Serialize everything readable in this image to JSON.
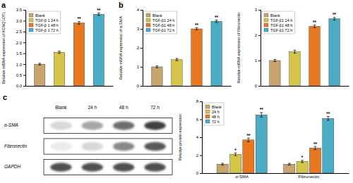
{
  "chart_data": [
    {
      "type": "bar",
      "title": "a",
      "ylabel": "Relative mRNA expression of KCNQ1OT1",
      "categories": [
        "Blank",
        "TGF-β 1 24 h",
        "TGF-β 1 48 h",
        "TGF-β 1 72 h"
      ],
      "values": [
        1.0,
        1.55,
        2.9,
        3.3
      ],
      "errors": [
        0.04,
        0.05,
        0.06,
        0.06
      ],
      "colors": [
        "#C8A46E",
        "#D4C44A",
        "#E87722",
        "#4BACC6"
      ],
      "ylim": [
        0,
        3.5
      ],
      "yticks": [
        {
          "value": 0.0,
          "label": "0.0"
        },
        0.5,
        {
          "value": 1.0,
          "label": "1.0"
        },
        1.5,
        {
          "value": 2.0,
          "label": "2.0"
        },
        2.5,
        {
          "value": 3.0,
          "label": "3.0"
        },
        3.5
      ],
      "tick_labels": "y",
      "legend": "upper left",
      "annotations": [
        {
          "text": "**",
          "category": "TGF-β 1 48 h"
        },
        {
          "text": "**",
          "category": "TGF-β 1 72 h"
        }
      ]
    },
    {
      "type": "bar",
      "title": "b",
      "ylabel": "Relative mRNA expression of α-SMA",
      "categories": [
        "Blank",
        "TGF-β1 24 h",
        "TGF-β1 48 h",
        "TGF-β1 72 h"
      ],
      "values": [
        1.0,
        1.38,
        3.0,
        3.4
      ],
      "errors": [
        0.05,
        0.06,
        0.06,
        0.06
      ],
      "colors": [
        "#C8A46E",
        "#D4C44A",
        "#E87722",
        "#4BACC6"
      ],
      "ylim": [
        0,
        4.0
      ],
      "yticks": [
        0,
        1,
        2,
        3,
        4
      ],
      "tick_labels": "y",
      "legend": "upper left",
      "annotations": [
        {
          "text": "**",
          "category": "TGF-β1 48 h"
        },
        {
          "text": "**",
          "category": "TGF-β1 72 h"
        }
      ]
    },
    {
      "type": "bar",
      "ylabel": "Relative mRNA expression of Fibronectin",
      "categories": [
        "Blank",
        "TGF-β1 24 h",
        "TGF-β1 48 h",
        "TGF-β1 72 h"
      ],
      "values": [
        1.0,
        1.35,
        2.35,
        2.65
      ],
      "errors": [
        0.04,
        0.06,
        0.05,
        0.05
      ],
      "colors": [
        "#C8A46E",
        "#D4C44A",
        "#E87722",
        "#4BACC6"
      ],
      "ylim": [
        0,
        3.0
      ],
      "yticks": [
        0,
        1,
        2,
        3
      ],
      "tick_labels": "y",
      "legend": "upper left",
      "annotations": [
        {
          "text": "**",
          "category": "TGF-β1 48 h"
        },
        {
          "text": "**",
          "category": "TGF-β1 72 h"
        }
      ]
    },
    {
      "type": "blot",
      "title": "c",
      "categories": [
        "Blank",
        "24 h",
        "48 h",
        "72 h"
      ],
      "series": [
        {
          "name": "α-SMA",
          "values": [
            0.25,
            0.45,
            0.65,
            0.8
          ]
        },
        {
          "name": "Fibronectin",
          "values": [
            0.15,
            0.25,
            0.55,
            0.72
          ]
        },
        {
          "name": "GAPDH",
          "values": [
            0.75,
            0.75,
            0.75,
            0.75
          ]
        }
      ]
    },
    {
      "type": "bar",
      "ylabel": "Relative protein expression",
      "categories": [
        "α-SMA",
        "Fibronectin"
      ],
      "series": [
        {
          "name": "Blank",
          "color": "#C8A46E",
          "values": [
            1.0,
            1.0
          ],
          "errors": [
            0.1,
            0.1
          ]
        },
        {
          "name": "24 h",
          "color": "#D4C44A",
          "values": [
            2.1,
            1.3
          ],
          "errors": [
            0.15,
            0.12
          ]
        },
        {
          "name": "48 h",
          "color": "#E87722",
          "values": [
            3.7,
            2.8
          ],
          "errors": [
            0.2,
            0.18
          ]
        },
        {
          "name": "72 h",
          "color": "#4BACC6",
          "values": [
            6.5,
            6.1
          ],
          "errors": [
            0.25,
            0.22
          ]
        }
      ],
      "ylim": [
        0,
        8
      ],
      "yticks": [
        0,
        2,
        4,
        6,
        8
      ],
      "legend": "upper left",
      "annotations": [
        {
          "text": "*",
          "category": "α-SMA",
          "series": "24 h"
        },
        {
          "text": "**",
          "category": "α-SMA",
          "series": "48 h"
        },
        {
          "text": "**",
          "category": "α-SMA",
          "series": "72 h"
        },
        {
          "text": "*",
          "category": "Fibronectin",
          "series": "24 h"
        },
        {
          "text": "**",
          "category": "Fibronectin",
          "series": "48 h"
        },
        {
          "text": "**",
          "category": "Fibronectin",
          "series": "72 h"
        }
      ]
    }
  ]
}
